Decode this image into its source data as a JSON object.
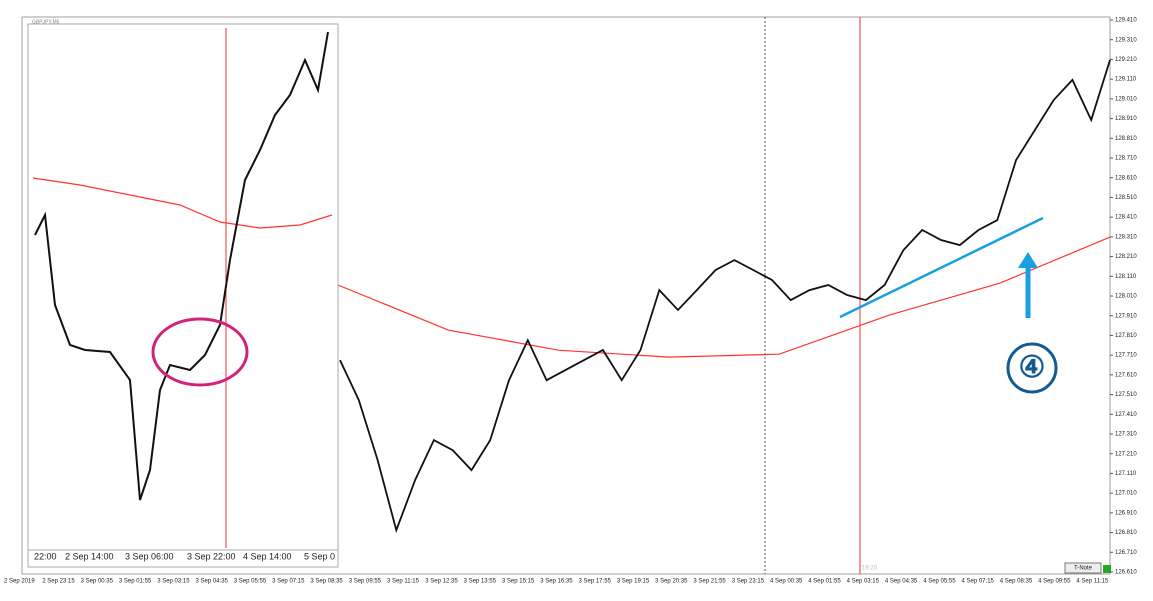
{
  "window": {
    "title": "GBPJPY,M5"
  },
  "price_axis": {
    "ylim": [
      126.61,
      129.41
    ],
    "ticks": [
      {
        "value": 129.41,
        "label": "129.410"
      },
      {
        "value": 129.31,
        "label": "129.310"
      },
      {
        "value": 129.21,
        "label": "129.210"
      },
      {
        "value": 129.11,
        "label": "129.110"
      },
      {
        "value": 129.01,
        "label": "129.010"
      },
      {
        "value": 128.91,
        "label": "128.910"
      },
      {
        "value": 128.81,
        "label": "128.810"
      },
      {
        "value": 128.71,
        "label": "128.710"
      },
      {
        "value": 128.61,
        "label": "128.610"
      },
      {
        "value": 128.51,
        "label": "128.510"
      },
      {
        "value": 128.41,
        "label": "128.410"
      },
      {
        "value": 128.31,
        "label": "128.310"
      },
      {
        "value": 128.21,
        "label": "128.210"
      },
      {
        "value": 128.11,
        "label": "128.110"
      },
      {
        "value": 128.01,
        "label": "128.010"
      },
      {
        "value": 127.91,
        "label": "127.910"
      },
      {
        "value": 127.81,
        "label": "127.810"
      },
      {
        "value": 127.71,
        "label": "127.710"
      },
      {
        "value": 127.61,
        "label": "127.610"
      },
      {
        "value": 127.51,
        "label": "127.510"
      },
      {
        "value": 127.41,
        "label": "127.410"
      },
      {
        "value": 127.31,
        "label": "127.310"
      },
      {
        "value": 127.21,
        "label": "127.210"
      },
      {
        "value": 127.11,
        "label": "127.110"
      },
      {
        "value": 127.01,
        "label": "127.010"
      },
      {
        "value": 126.91,
        "label": "126.910"
      },
      {
        "value": 126.81,
        "label": "126.810"
      },
      {
        "value": 126.71,
        "label": "126.710"
      },
      {
        "value": 126.61,
        "label": "126.610"
      }
    ]
  },
  "time_axis": {
    "labels": [
      "2 Sep 2019",
      "2 Sep 23:15",
      "3 Sep 00:35",
      "3 Sep 01:55",
      "3 Sep 03:15",
      "3 Sep 04:35",
      "3 Sep 05:55",
      "3 Sep 07:15",
      "3 Sep 08:35",
      "3 Sep 09:55",
      "3 Sep 11:15",
      "3 Sep 12:35",
      "3 Sep 13:55",
      "3 Sep 15:15",
      "3 Sep 16:35",
      "3 Sep 17:55",
      "3 Sep 19:15",
      "3 Sep 20:35",
      "3 Sep 21:55",
      "3 Sep 23:15",
      "4 Sep 00:35",
      "4 Sep 01:55",
      "4 Sep 03:15",
      "4 Sep 04:35",
      "4 Sep 05:55",
      "4 Sep 07:15",
      "4 Sep 08:35",
      "4 Sep 09:55",
      "4 Sep 11:15"
    ]
  },
  "inset": {
    "time_labels": [
      "22:00",
      "2 Sep 14:00",
      "3 Sep 06:00",
      "3 Sep 22:00",
      "4 Sep 14:00",
      "5 Sep 0"
    ]
  },
  "chart": {
    "close": [
      127.685,
      127.482,
      127.178,
      126.822,
      127.076,
      127.279,
      127.228,
      127.127,
      127.279,
      127.583,
      127.786,
      127.583,
      127.634,
      127.685,
      127.736,
      127.583,
      127.736,
      128.04,
      127.939,
      128.04,
      128.142,
      128.192,
      128.142,
      128.091,
      127.989,
      128.04,
      128.066,
      128.015,
      127.989,
      128.066,
      128.243,
      128.345,
      128.294,
      128.268,
      128.345,
      128.395,
      128.7,
      128.852,
      129.004,
      129.106,
      128.903,
      129.207
    ],
    "ma": [
      128.066,
      127.837,
      127.735,
      127.7,
      127.715,
      127.913,
      128.075,
      128.309
    ]
  },
  "cursor_label": "19:20",
  "button": "T-Note",
  "annotation": "④"
}
